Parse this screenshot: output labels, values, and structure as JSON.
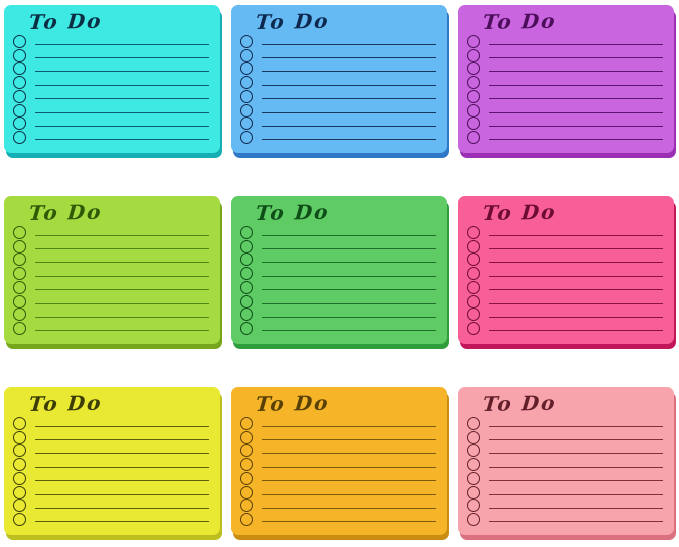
{
  "image": {
    "description": "Grid of nine colorful to-do list sticky note pads",
    "background": "#ffffff"
  },
  "grid": {
    "rows": 3,
    "columns": 3
  },
  "notes": [
    {
      "name": "cyan",
      "title": "To Do",
      "lines": 8,
      "colors": {
        "bg": "#3DE9E2",
        "edge": "#15AEB5",
        "ink": "#0a2e44",
        "line": "#0e5a74"
      }
    },
    {
      "name": "blue",
      "title": "To Do",
      "lines": 8,
      "colors": {
        "bg": "#66BAF3",
        "edge": "#3077C5",
        "ink": "#0d2950",
        "line": "#17375f"
      }
    },
    {
      "name": "purple",
      "title": "To Do",
      "lines": 8,
      "colors": {
        "bg": "#C965DE",
        "edge": "#9B30B5",
        "ink": "#4c0e5a",
        "line": "#5e1472"
      }
    },
    {
      "name": "lime-green",
      "title": "To Do",
      "lines": 8,
      "colors": {
        "bg": "#A6DA41",
        "edge": "#76A61C",
        "ink": "#2e5907",
        "line": "#4e8514"
      }
    },
    {
      "name": "green",
      "title": "To Do",
      "lines": 8,
      "colors": {
        "bg": "#5FCB65",
        "edge": "#309D3D",
        "ink": "#0e4d17",
        "line": "#1d6f29"
      }
    },
    {
      "name": "hot-pink",
      "title": "To Do",
      "lines": 8,
      "colors": {
        "bg": "#F75F96",
        "edge": "#C2165B",
        "ink": "#6d0c31",
        "line": "#8d1243"
      }
    },
    {
      "name": "yellow",
      "title": "To Do",
      "lines": 8,
      "colors": {
        "bg": "#E9E934",
        "edge": "#BCBF1F",
        "ink": "#3b3d05",
        "line": "#5d5f0b"
      }
    },
    {
      "name": "amber",
      "title": "To Do",
      "lines": 8,
      "colors": {
        "bg": "#F6B528",
        "edge": "#C88D11",
        "ink": "#594004",
        "line": "#7b5b09"
      }
    },
    {
      "name": "light-pink",
      "title": "To Do",
      "lines": 8,
      "colors": {
        "bg": "#F8A4AD",
        "edge": "#DB707F",
        "ink": "#63202b",
        "line": "#853037"
      }
    }
  ]
}
